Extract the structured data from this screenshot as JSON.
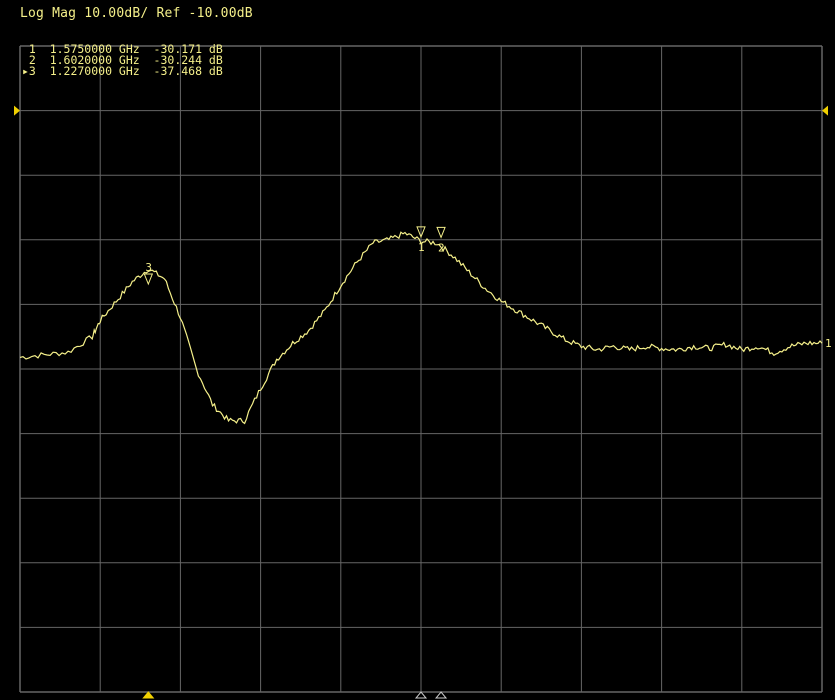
{
  "header": {
    "trace_format": "Log Mag 10.00dB/ Ref -10.00dB"
  },
  "markers": [
    {
      "number": "1",
      "active": false,
      "frequency": "1.5750000 GHz",
      "value": "-30.171 dB"
    },
    {
      "number": "2",
      "active": false,
      "frequency": "1.6020000 GHz",
      "value": "-30.244 dB"
    },
    {
      "number": "3",
      "active": true,
      "frequency": "1.2270000 GHz",
      "value": "-37.468 dB"
    }
  ],
  "marker_readouts": [
    " 1  1.5750000 GHz  -30.171 dB",
    " 2  1.6020000 GHz  -30.244 dB",
    "▸3  1.2270000 GHz  -37.468 dB"
  ],
  "trace_end_label": "1",
  "colors": {
    "background": "#000000",
    "grid": "#666666",
    "trace": "#f5f08a",
    "annotation": "#f5f08a",
    "reference_marker": "#f0d000"
  },
  "chart_data": {
    "type": "line",
    "title": "Log Mag 10.00dB/ Ref -10.00dB",
    "xlabel": "",
    "ylabel": "",
    "scale_db_per_div": 10,
    "reference_db": -10,
    "divisions": {
      "x": 10,
      "y": 10
    },
    "xlim": [
      0,
      10
    ],
    "ylim": [
      -100,
      0
    ],
    "grid": true,
    "series": [
      {
        "x": [
          0,
          0.3,
          0.6,
          0.9,
          1.0,
          1.2,
          1.4,
          1.6,
          1.8,
          2.0,
          2.2,
          2.4,
          2.6,
          2.8,
          3.0,
          3.2,
          3.4,
          3.6,
          3.8,
          4.0,
          4.2,
          4.4,
          4.6,
          4.8,
          5.0,
          5.2,
          5.4,
          5.6,
          5.8,
          6.0,
          6.2,
          6.4,
          6.6,
          6.8,
          7.0,
          7.2,
          7.4,
          7.6,
          7.8,
          8.0,
          8.2,
          8.4,
          8.6,
          8.8,
          9.0,
          9.2,
          9.4,
          9.6,
          9.8,
          10.0
        ],
        "values": [
          -48.2,
          -47.8,
          -47.4,
          -45.0,
          -42.5,
          -39.5,
          -36.5,
          -34.5,
          -36.0,
          -42.0,
          -50.0,
          -55.5,
          -58.0,
          -58.0,
          -53.0,
          -48.5,
          -46.0,
          -44.0,
          -41.0,
          -37.0,
          -33.5,
          -30.5,
          -30.0,
          -29.0,
          -30.2,
          -30.5,
          -32.5,
          -35.0,
          -37.5,
          -39.5,
          -41.0,
          -42.5,
          -44.0,
          -45.5,
          -46.5,
          -47.0,
          -46.5,
          -47.0,
          -46.5,
          -46.8,
          -47.0,
          -46.5,
          -46.8,
          -46.2,
          -47.0,
          -46.5,
          -47.5,
          -46.5,
          -46.0,
          -46.0
        ]
      }
    ],
    "markers": [
      {
        "id": "1",
        "x": 5.0,
        "y": -30.171
      },
      {
        "id": "2",
        "x": 5.25,
        "y": -30.244
      },
      {
        "id": "3",
        "x": 1.6,
        "y": -37.468
      }
    ]
  }
}
